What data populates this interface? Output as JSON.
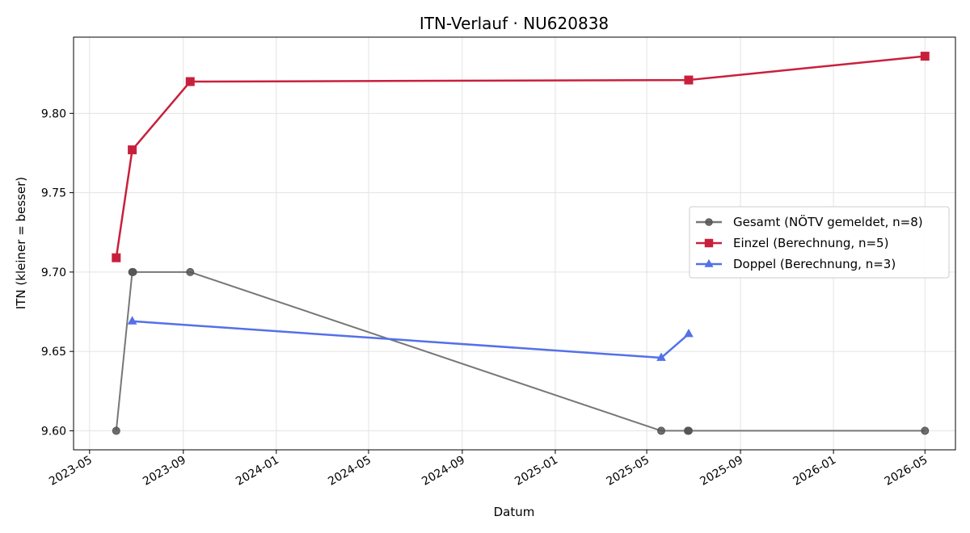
{
  "colors": {
    "gesamt": "#777777",
    "gesamt_marker": "#555555",
    "einzel": "#c8203c",
    "doppel": "#5470e8",
    "grid": "#e3e3e3"
  },
  "chart_data": {
    "type": "line",
    "title": "ITN-Verlauf · NU620838",
    "xlabel": "Datum",
    "ylabel": "ITN  (kleiner = besser)",
    "x_type": "date",
    "xlim": [
      "2023-04-10",
      "2026-06-10"
    ],
    "ylim": [
      9.588,
      9.848
    ],
    "x_ticks": [
      "2023-05-01",
      "2023-09-01",
      "2024-01-01",
      "2024-05-01",
      "2024-09-01",
      "2025-01-01",
      "2025-05-01",
      "2025-09-01",
      "2026-01-01",
      "2026-05-01"
    ],
    "x_tick_labels": [
      "2023-05",
      "2023-09",
      "2024-01",
      "2024-05",
      "2024-09",
      "2025-01",
      "2025-05",
      "2025-09",
      "2026-01",
      "2026-05"
    ],
    "y_ticks": [
      9.6,
      9.65,
      9.7,
      9.75,
      9.8
    ],
    "y_tick_labels": [
      "9.60",
      "9.65",
      "9.70",
      "9.75",
      "9.80"
    ],
    "grid": true,
    "legend_position": "center-right",
    "series": [
      {
        "name": "Gesamt (NÖTV gemeldet, n=8)",
        "color_key": "gesamt",
        "marker": "circle",
        "points": [
          {
            "x": "2023-06-05",
            "y": 9.6
          },
          {
            "x": "2023-06-26",
            "y": 9.7
          },
          {
            "x": "2023-06-27",
            "y": 9.7
          },
          {
            "x": "2023-09-10",
            "y": 9.7
          },
          {
            "x": "2025-05-20",
            "y": 9.6
          },
          {
            "x": "2025-06-24",
            "y": 9.6
          },
          {
            "x": "2025-06-25",
            "y": 9.6
          },
          {
            "x": "2026-05-01",
            "y": 9.6
          }
        ]
      },
      {
        "name": "Einzel (Berechnung, n=5)",
        "color_key": "einzel",
        "marker": "square",
        "points": [
          {
            "x": "2023-06-05",
            "y": 9.709
          },
          {
            "x": "2023-06-26",
            "y": 9.777
          },
          {
            "x": "2023-09-10",
            "y": 9.82
          },
          {
            "x": "2025-06-25",
            "y": 9.821
          },
          {
            "x": "2026-05-01",
            "y": 9.836
          }
        ]
      },
      {
        "name": "Doppel (Berechnung, n=3)",
        "color_key": "doppel",
        "marker": "triangle",
        "points": [
          {
            "x": "2023-06-26",
            "y": 9.669
          },
          {
            "x": "2025-05-20",
            "y": 9.646
          },
          {
            "x": "2025-06-25",
            "y": 9.661
          }
        ]
      }
    ]
  }
}
